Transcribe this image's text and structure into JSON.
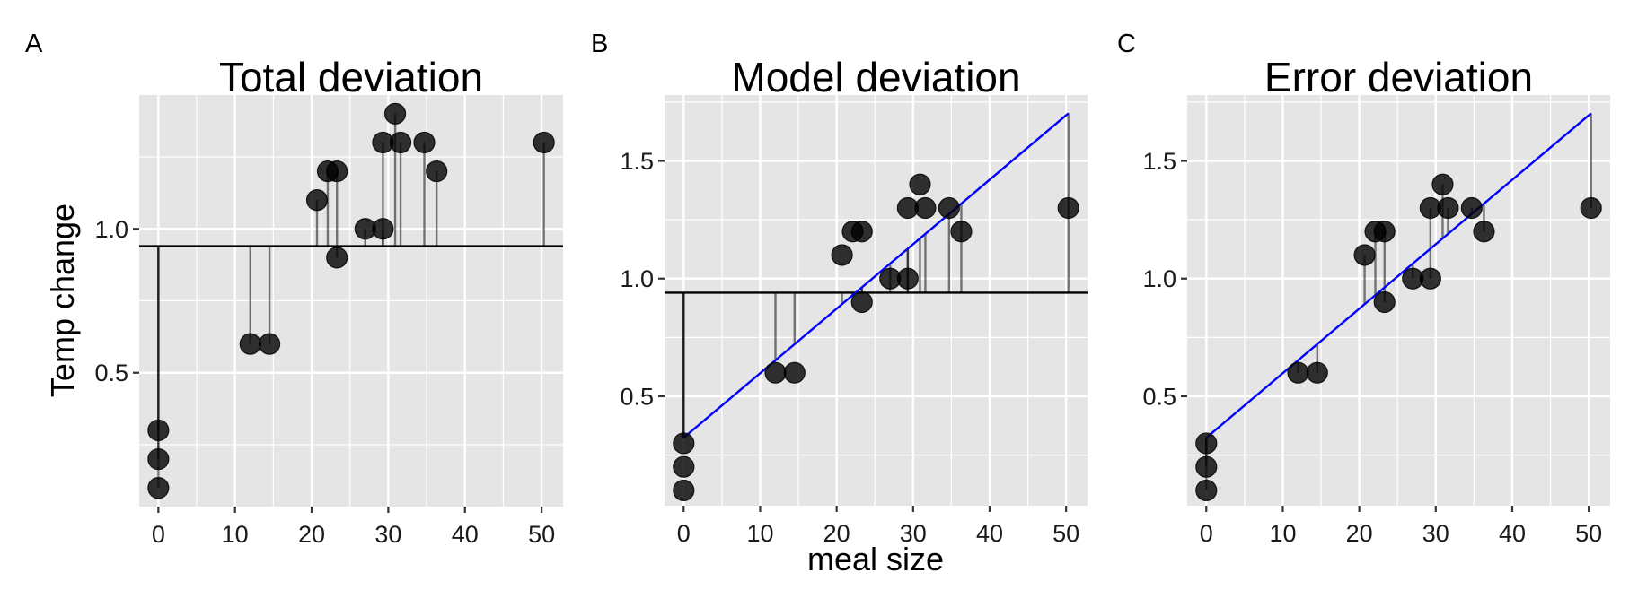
{
  "figure": {
    "shared_ylabel": "Temp change",
    "shared_xlabel": "meal size"
  },
  "colors": {
    "panel_background": "#e5e5e5",
    "grid": "#ffffff",
    "points": "#000000",
    "fit_line": "#0000ff",
    "mean_line": "#000000"
  },
  "chart_data": [
    {
      "type": "scatter",
      "tag": "A",
      "title": "Total deviation",
      "xlabel": "",
      "ylabel": "Temp change",
      "xlim": [
        -2.5,
        52.8
      ],
      "ylim": [
        0.035,
        1.465
      ],
      "x_ticks": [
        0,
        10,
        20,
        30,
        40,
        50
      ],
      "x_tick_labels": [
        "0",
        "10",
        "20",
        "30",
        "40",
        "50"
      ],
      "y_ticks": [
        0.5,
        1.0
      ],
      "y_tick_labels": [
        "0.5",
        "1.0"
      ],
      "grid": true,
      "mean_line": 0.94,
      "fit_line": null,
      "segments_to": "mean",
      "points": [
        {
          "x": 0,
          "y": 0.1
        },
        {
          "x": 0,
          "y": 0.2
        },
        {
          "x": 0,
          "y": 0.3
        },
        {
          "x": 12,
          "y": 0.6
        },
        {
          "x": 14.5,
          "y": 0.6
        },
        {
          "x": 20.7,
          "y": 1.1
        },
        {
          "x": 22.1,
          "y": 1.2
        },
        {
          "x": 23.3,
          "y": 1.2
        },
        {
          "x": 23.3,
          "y": 0.9
        },
        {
          "x": 27.0,
          "y": 1.0
        },
        {
          "x": 29.3,
          "y": 1.0
        },
        {
          "x": 29.3,
          "y": 1.3
        },
        {
          "x": 30.9,
          "y": 1.4
        },
        {
          "x": 31.6,
          "y": 1.3
        },
        {
          "x": 34.7,
          "y": 1.3
        },
        {
          "x": 36.3,
          "y": 1.2
        },
        {
          "x": 50.3,
          "y": 1.3
        }
      ]
    },
    {
      "type": "scatter",
      "tag": "B",
      "title": "Model deviation",
      "xlabel": "meal size",
      "ylabel": "",
      "xlim": [
        -2.5,
        52.8
      ],
      "ylim": [
        0.035,
        1.78
      ],
      "x_ticks": [
        0,
        10,
        20,
        30,
        40,
        50
      ],
      "x_tick_labels": [
        "0",
        "10",
        "20",
        "30",
        "40",
        "50"
      ],
      "y_ticks": [
        0.5,
        1.0,
        1.5
      ],
      "y_tick_labels": [
        "0.5",
        "1.0",
        "1.5"
      ],
      "grid": true,
      "mean_line": 0.94,
      "fit_line": {
        "intercept": 0.324,
        "slope": 0.0274,
        "x_range": [
          0,
          50.3
        ]
      },
      "segments_to": "model-vs-mean",
      "points": [
        {
          "x": 0,
          "y": 0.1
        },
        {
          "x": 0,
          "y": 0.2
        },
        {
          "x": 0,
          "y": 0.3
        },
        {
          "x": 12,
          "y": 0.6
        },
        {
          "x": 14.5,
          "y": 0.6
        },
        {
          "x": 20.7,
          "y": 1.1
        },
        {
          "x": 22.1,
          "y": 1.2
        },
        {
          "x": 23.3,
          "y": 1.2
        },
        {
          "x": 23.3,
          "y": 0.9
        },
        {
          "x": 27.0,
          "y": 1.0
        },
        {
          "x": 29.3,
          "y": 1.0
        },
        {
          "x": 29.3,
          "y": 1.3
        },
        {
          "x": 30.9,
          "y": 1.4
        },
        {
          "x": 31.6,
          "y": 1.3
        },
        {
          "x": 34.7,
          "y": 1.3
        },
        {
          "x": 36.3,
          "y": 1.2
        },
        {
          "x": 50.3,
          "y": 1.3
        }
      ]
    },
    {
      "type": "scatter",
      "tag": "C",
      "title": "Error deviation",
      "xlabel": "",
      "ylabel": "",
      "xlim": [
        -2.5,
        52.8
      ],
      "ylim": [
        0.035,
        1.78
      ],
      "x_ticks": [
        0,
        10,
        20,
        30,
        40,
        50
      ],
      "x_tick_labels": [
        "0",
        "10",
        "20",
        "30",
        "40",
        "50"
      ],
      "y_ticks": [
        0.5,
        1.0,
        1.5
      ],
      "y_tick_labels": [
        "0.5",
        "1.0",
        "1.5"
      ],
      "grid": true,
      "mean_line": null,
      "fit_line": {
        "intercept": 0.324,
        "slope": 0.0274,
        "x_range": [
          0,
          50.3
        ]
      },
      "segments_to": "model",
      "points": [
        {
          "x": 0,
          "y": 0.1
        },
        {
          "x": 0,
          "y": 0.2
        },
        {
          "x": 0,
          "y": 0.3
        },
        {
          "x": 12,
          "y": 0.6
        },
        {
          "x": 14.5,
          "y": 0.6
        },
        {
          "x": 20.7,
          "y": 1.1
        },
        {
          "x": 22.1,
          "y": 1.2
        },
        {
          "x": 23.3,
          "y": 1.2
        },
        {
          "x": 23.3,
          "y": 0.9
        },
        {
          "x": 27.0,
          "y": 1.0
        },
        {
          "x": 29.3,
          "y": 1.0
        },
        {
          "x": 29.3,
          "y": 1.3
        },
        {
          "x": 30.9,
          "y": 1.4
        },
        {
          "x": 31.6,
          "y": 1.3
        },
        {
          "x": 34.7,
          "y": 1.3
        },
        {
          "x": 36.3,
          "y": 1.2
        },
        {
          "x": 50.3,
          "y": 1.3
        }
      ]
    }
  ]
}
